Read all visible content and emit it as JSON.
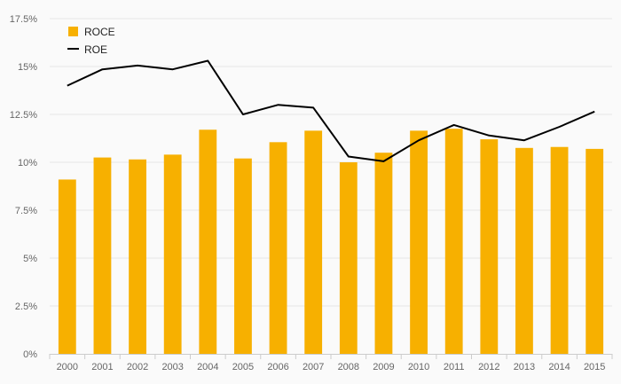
{
  "chart_data": {
    "type": "bar",
    "title": "",
    "xlabel": "",
    "ylabel": "",
    "categories": [
      "2000",
      "2001",
      "2002",
      "2003",
      "2004",
      "2005",
      "2006",
      "2007",
      "2008",
      "2009",
      "2010",
      "2011",
      "2012",
      "2013",
      "2014",
      "2015"
    ],
    "series": [
      {
        "name": "ROCE",
        "type": "bar",
        "color": "#f7b000",
        "values": [
          9.1,
          10.25,
          10.15,
          10.4,
          11.7,
          10.2,
          11.05,
          11.65,
          10.0,
          10.5,
          11.65,
          11.75,
          11.2,
          10.75,
          10.8,
          10.7
        ]
      },
      {
        "name": "ROE",
        "type": "line",
        "color": "#000000",
        "values": [
          14.0,
          14.85,
          15.05,
          14.85,
          15.3,
          12.5,
          13.0,
          12.85,
          10.3,
          10.05,
          11.15,
          11.95,
          11.4,
          11.15,
          11.85,
          12.65
        ]
      }
    ],
    "ylim": [
      0,
      17.5
    ],
    "y_ticks": [
      0,
      2.5,
      5,
      7.5,
      10,
      12.5,
      15,
      17.5
    ],
    "y_tick_labels": [
      "0%",
      "2.5%",
      "5%",
      "7.5%",
      "10%",
      "12.5%",
      "15%",
      "17.5%"
    ],
    "grid": true,
    "legend_position": "top-left"
  }
}
